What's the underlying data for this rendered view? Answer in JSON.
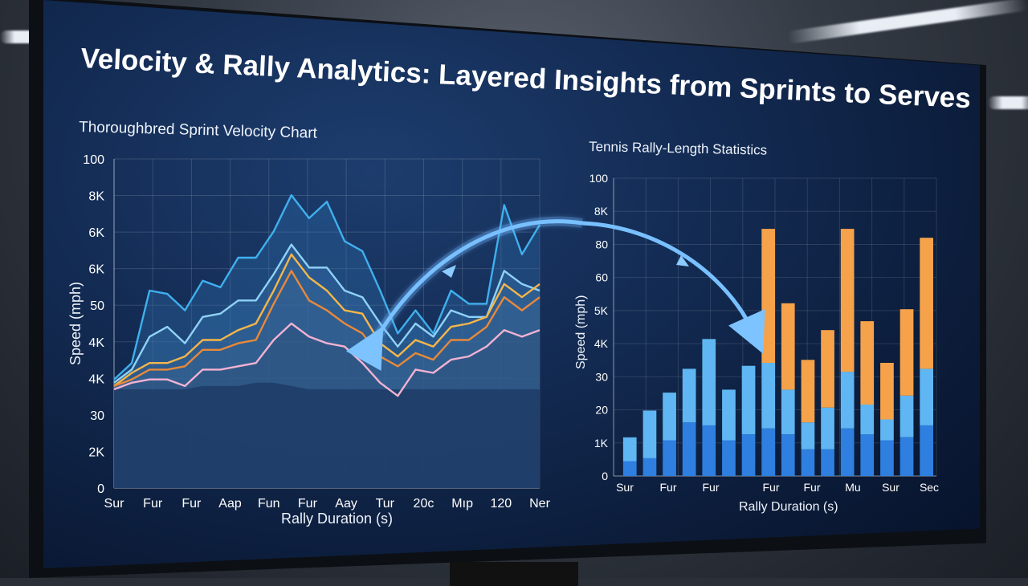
{
  "dashboard": {
    "title": "Velocity & Rally Analytics: Layered Insights from Sprints to Serves"
  },
  "chart_data": [
    {
      "type": "area",
      "title": "Thoroughbred Sprint Velocity Chart",
      "xlabel": "Rally Duration (s)",
      "ylabel": "Speed (mph)",
      "categories": [
        "Sur",
        "Fur",
        "Fur",
        "Aap",
        "Fun",
        "Fur",
        "Aay",
        "Tur",
        "20c",
        "Mıp",
        "120",
        "Ner"
      ],
      "y_tick_labels": [
        "0",
        "2K",
        "30",
        "4K",
        "4K",
        "50",
        "6K",
        "6K",
        "8K",
        "100"
      ],
      "ylim": [
        0,
        100
      ],
      "grid": true,
      "x": [
        0,
        0.5,
        1,
        1.5,
        2,
        2.5,
        3,
        3.5,
        4,
        4.5,
        5,
        5.5,
        6,
        6.5,
        7,
        7.5,
        8,
        8.5,
        9,
        9.5,
        10,
        10.5,
        11,
        11.5,
        12
      ],
      "series": [
        {
          "color": "#3fb0ee",
          "values": [
            33,
            38,
            60,
            59,
            54,
            63,
            61,
            70,
            70,
            78,
            89,
            82,
            87,
            75,
            72,
            60,
            47,
            54,
            47,
            60,
            56,
            56,
            86,
            71,
            80
          ]
        },
        {
          "color": "#8fd2f7",
          "values": [
            32,
            36,
            46,
            49,
            44,
            52,
            53,
            57,
            57,
            65,
            74,
            67,
            67,
            60,
            58,
            50,
            43,
            50,
            46,
            54,
            52,
            52,
            66,
            62,
            60
          ]
        },
        {
          "color": "#f4b64a",
          "values": [
            31,
            35,
            38,
            38,
            40,
            45,
            45,
            48,
            50,
            60,
            71,
            64,
            60,
            54,
            53,
            44,
            40,
            45,
            43,
            49,
            50,
            52,
            62,
            58,
            62
          ]
        },
        {
          "color": "#e8893a",
          "values": [
            31,
            33,
            36,
            36,
            37,
            42,
            42,
            44,
            45,
            56,
            66,
            57,
            54,
            50,
            47,
            40,
            37,
            41,
            39,
            45,
            45,
            49,
            58,
            54,
            58
          ]
        },
        {
          "color": "#f2b2d2",
          "values": [
            30,
            32,
            33,
            33,
            31,
            36,
            36,
            37,
            38,
            45,
            50,
            46,
            44,
            43,
            38,
            32,
            28,
            36,
            35,
            39,
            40,
            43,
            48,
            46,
            48
          ]
        }
      ],
      "baseline_band": [
        30,
        30,
        30,
        30,
        30,
        31,
        31,
        31,
        32,
        32,
        31,
        30,
        30,
        30,
        30,
        30,
        30,
        30,
        30,
        30,
        30,
        30,
        30,
        30,
        30
      ]
    },
    {
      "type": "bar",
      "stacked": true,
      "title": "Tennis Rally-Length Statistics",
      "xlabel": "Rally Duration (s)",
      "ylabel": "Speed (mph)",
      "x_tick_labels": [
        "Sur",
        "Fur",
        "Fur",
        "Fur",
        "Fur",
        "Mu",
        "Sur",
        "Sec"
      ],
      "y_tick_labels": [
        "0",
        "1K",
        "20",
        "30",
        "4K",
        "5K",
        "60",
        "80",
        "8K",
        "100"
      ],
      "ylim": [
        0,
        100
      ],
      "grid": true,
      "series": [
        {
          "name": "",
          "color": "#2e7fe0",
          "values": [
            5,
            6,
            12,
            18,
            17,
            12,
            14,
            16,
            14,
            9,
            9,
            16,
            14,
            12,
            13,
            17
          ]
        },
        {
          "name": "",
          "color": "#5fb6f2",
          "values": [
            8,
            16,
            16,
            18,
            29,
            17,
            23,
            22,
            15,
            9,
            14,
            19,
            10,
            7,
            14,
            19
          ]
        },
        {
          "name": "",
          "color": "#f6a24a",
          "values": [
            0,
            0,
            0,
            0,
            0,
            0,
            0,
            45,
            29,
            21,
            26,
            48,
            28,
            19,
            29,
            44
          ]
        }
      ]
    }
  ]
}
